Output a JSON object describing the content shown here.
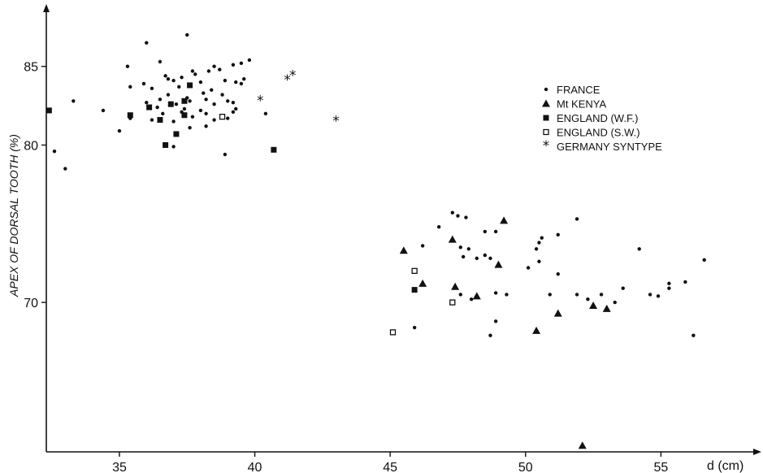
{
  "chart_data": {
    "type": "scatter",
    "title": "",
    "xlabel": "d (cm)",
    "ylabel": "APEX OF DORSAL TOOTH (%)",
    "xlim": [
      32.3,
      58.5
    ],
    "ylim": [
      60.5,
      88.6
    ],
    "x_ticks": [
      35,
      40,
      45,
      50,
      55
    ],
    "y_ticks": [
      70,
      80,
      85
    ],
    "legend_position": "top-right",
    "grid": false,
    "series": [
      {
        "name": "FRANCE",
        "marker": "dot",
        "points": [
          [
            37.5,
            87.0
          ],
          [
            36.0,
            86.5
          ],
          [
            36.5,
            85.3
          ],
          [
            35.3,
            85.0
          ],
          [
            39.8,
            85.4
          ],
          [
            39.5,
            85.2
          ],
          [
            39.2,
            85.1
          ],
          [
            38.5,
            85.0
          ],
          [
            38.3,
            84.7
          ],
          [
            37.7,
            84.7
          ],
          [
            38.7,
            84.8
          ],
          [
            37.8,
            84.5
          ],
          [
            37.3,
            84.3
          ],
          [
            36.8,
            84.2
          ],
          [
            36.7,
            84.4
          ],
          [
            37.0,
            84.1
          ],
          [
            39.6,
            84.2
          ],
          [
            38.9,
            84.1
          ],
          [
            39.3,
            84.0
          ],
          [
            38.0,
            84.0
          ],
          [
            37.2,
            83.7
          ],
          [
            35.9,
            83.9
          ],
          [
            36.2,
            83.6
          ],
          [
            35.4,
            83.7
          ],
          [
            39.5,
            83.9
          ],
          [
            36.8,
            83.2
          ],
          [
            37.5,
            83.0
          ],
          [
            38.1,
            83.3
          ],
          [
            38.4,
            83.5
          ],
          [
            36.5,
            82.9
          ],
          [
            37.6,
            82.8
          ],
          [
            38.2,
            82.9
          ],
          [
            38.8,
            83.2
          ],
          [
            39.0,
            82.8
          ],
          [
            36.0,
            82.7
          ],
          [
            37.1,
            82.6
          ],
          [
            38.5,
            82.6
          ],
          [
            39.2,
            82.7
          ],
          [
            36.4,
            82.4
          ],
          [
            37.4,
            82.3
          ],
          [
            38.0,
            82.2
          ],
          [
            39.3,
            82.3
          ],
          [
            33.3,
            82.8
          ],
          [
            34.4,
            82.2
          ],
          [
            36.6,
            82.0
          ],
          [
            37.3,
            82.1
          ],
          [
            38.2,
            82.0
          ],
          [
            39.2,
            82.1
          ],
          [
            40.4,
            82.0
          ],
          [
            35.4,
            81.7
          ],
          [
            36.2,
            81.6
          ],
          [
            37.0,
            81.5
          ],
          [
            37.7,
            81.8
          ],
          [
            38.5,
            81.6
          ],
          [
            39.0,
            81.7
          ],
          [
            35.0,
            80.9
          ],
          [
            37.6,
            81.1
          ],
          [
            38.2,
            81.2
          ],
          [
            32.6,
            79.6
          ],
          [
            37.0,
            79.9
          ],
          [
            38.9,
            79.4
          ],
          [
            33.0,
            78.5
          ],
          [
            47.3,
            75.7
          ],
          [
            47.5,
            75.5
          ],
          [
            47.8,
            75.4
          ],
          [
            51.9,
            75.3
          ],
          [
            46.8,
            74.8
          ],
          [
            48.5,
            74.5
          ],
          [
            48.9,
            74.5
          ],
          [
            51.2,
            74.3
          ],
          [
            50.6,
            74.1
          ],
          [
            50.5,
            73.8
          ],
          [
            46.2,
            73.6
          ],
          [
            47.6,
            73.5
          ],
          [
            47.9,
            73.4
          ],
          [
            54.2,
            73.4
          ],
          [
            48.5,
            73.0
          ],
          [
            50.4,
            73.4
          ],
          [
            47.7,
            72.9
          ],
          [
            48.7,
            72.8
          ],
          [
            48.2,
            72.8
          ],
          [
            50.5,
            72.6
          ],
          [
            56.6,
            72.7
          ],
          [
            50.1,
            72.2
          ],
          [
            51.2,
            71.8
          ],
          [
            53.6,
            70.9
          ],
          [
            47.6,
            70.5
          ],
          [
            48.0,
            70.2
          ],
          [
            48.9,
            70.6
          ],
          [
            49.3,
            70.5
          ],
          [
            50.9,
            70.5
          ],
          [
            51.9,
            70.5
          ],
          [
            52.3,
            70.2
          ],
          [
            52.8,
            70.5
          ],
          [
            53.3,
            70.0
          ],
          [
            54.6,
            70.5
          ],
          [
            54.9,
            70.4
          ],
          [
            55.3,
            70.9
          ],
          [
            55.3,
            71.2
          ],
          [
            55.9,
            71.3
          ],
          [
            48.9,
            68.8
          ],
          [
            45.9,
            68.4
          ],
          [
            48.7,
            67.9
          ],
          [
            56.2,
            67.9
          ]
        ]
      },
      {
        "name": "Mt KENYA",
        "marker": "triangle",
        "points": [
          [
            45.5,
            73.3
          ],
          [
            47.3,
            74.0
          ],
          [
            49.2,
            75.2
          ],
          [
            49.0,
            72.4
          ],
          [
            46.2,
            71.2
          ],
          [
            47.4,
            71.0
          ],
          [
            48.2,
            70.4
          ],
          [
            52.5,
            69.8
          ],
          [
            53.0,
            69.6
          ],
          [
            51.2,
            69.3
          ],
          [
            50.4,
            68.2
          ],
          [
            52.1,
            60.9
          ]
        ]
      },
      {
        "name": "ENGLAND (W.F.)",
        "marker": "filled-square",
        "points": [
          [
            32.4,
            82.2
          ],
          [
            37.6,
            83.8
          ],
          [
            37.4,
            82.8
          ],
          [
            36.1,
            82.4
          ],
          [
            36.9,
            82.6
          ],
          [
            35.4,
            81.9
          ],
          [
            37.4,
            81.9
          ],
          [
            36.5,
            81.6
          ],
          [
            37.1,
            80.7
          ],
          [
            36.7,
            80.0
          ],
          [
            40.7,
            79.7
          ],
          [
            45.9,
            70.8
          ]
        ]
      },
      {
        "name": "ENGLAND (S.W.)",
        "marker": "open-square",
        "points": [
          [
            38.8,
            81.8
          ],
          [
            45.9,
            72.0
          ],
          [
            47.3,
            70.0
          ],
          [
            45.1,
            68.1
          ]
        ]
      },
      {
        "name": "GERMANY SYNTYPE",
        "marker": "asterisk",
        "points": [
          [
            41.2,
            84.2
          ],
          [
            41.4,
            84.5
          ],
          [
            40.2,
            82.9
          ],
          [
            43.0,
            81.6
          ]
        ]
      }
    ]
  },
  "legend": {
    "items": [
      {
        "marker": "dot",
        "label": "FRANCE"
      },
      {
        "marker": "triangle",
        "label": "Mt KENYA"
      },
      {
        "marker": "filled-square",
        "label": "ENGLAND (W.F.)"
      },
      {
        "marker": "open-square",
        "label": "ENGLAND (S.W.)"
      },
      {
        "marker": "asterisk",
        "label": "GERMANY SYNTYPE"
      }
    ]
  }
}
